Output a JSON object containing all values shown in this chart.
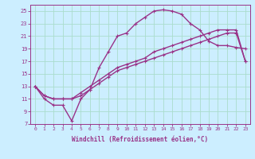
{
  "xlabel": "Windchill (Refroidissement éolien,°C)",
  "background_color": "#cceeff",
  "grid_color": "#aaddcc",
  "line_color": "#993388",
  "ylim": [
    7,
    26
  ],
  "xlim": [
    -0.5,
    23.5
  ],
  "yticks": [
    7,
    9,
    11,
    13,
    15,
    17,
    19,
    21,
    23,
    25
  ],
  "xticks": [
    0,
    1,
    2,
    3,
    4,
    5,
    6,
    7,
    8,
    9,
    10,
    11,
    12,
    13,
    14,
    15,
    16,
    17,
    18,
    19,
    20,
    21,
    22,
    23
  ],
  "curve1_x": [
    0,
    1,
    2,
    3,
    4,
    5,
    6,
    7,
    8,
    9,
    10,
    11,
    12,
    13,
    14,
    15,
    16,
    17,
    18,
    19,
    20,
    21,
    22,
    23
  ],
  "curve1_y": [
    13,
    11,
    10,
    10,
    7.5,
    11,
    12.5,
    16,
    18.5,
    21,
    21.5,
    23,
    24,
    25,
    25.2,
    25,
    24.5,
    23,
    22,
    20.2,
    19.5,
    19.5,
    19.2,
    19.0
  ],
  "curve2_x": [
    0,
    1,
    2,
    3,
    4,
    5,
    6,
    7,
    8,
    9,
    10,
    11,
    12,
    13,
    14,
    15,
    16,
    17,
    18,
    19,
    20,
    21,
    22,
    23
  ],
  "curve2_y": [
    13,
    11.5,
    11,
    11,
    11,
    11.5,
    12.5,
    13.5,
    14.5,
    15.5,
    16,
    16.5,
    17,
    17.5,
    18,
    18.5,
    19,
    19.5,
    20,
    20.5,
    21,
    21.5,
    21.5,
    17
  ],
  "curve3_x": [
    0,
    1,
    2,
    3,
    4,
    5,
    6,
    7,
    8,
    9,
    10,
    11,
    12,
    13,
    14,
    15,
    16,
    17,
    18,
    19,
    20,
    21,
    22,
    23
  ],
  "curve3_y": [
    13,
    11.5,
    11,
    11,
    11,
    12,
    13,
    14,
    15,
    16,
    16.5,
    17,
    17.5,
    18.5,
    19,
    19.5,
    20,
    20.5,
    21,
    21.5,
    22,
    22,
    22,
    17
  ],
  "linewidth": 1.0
}
